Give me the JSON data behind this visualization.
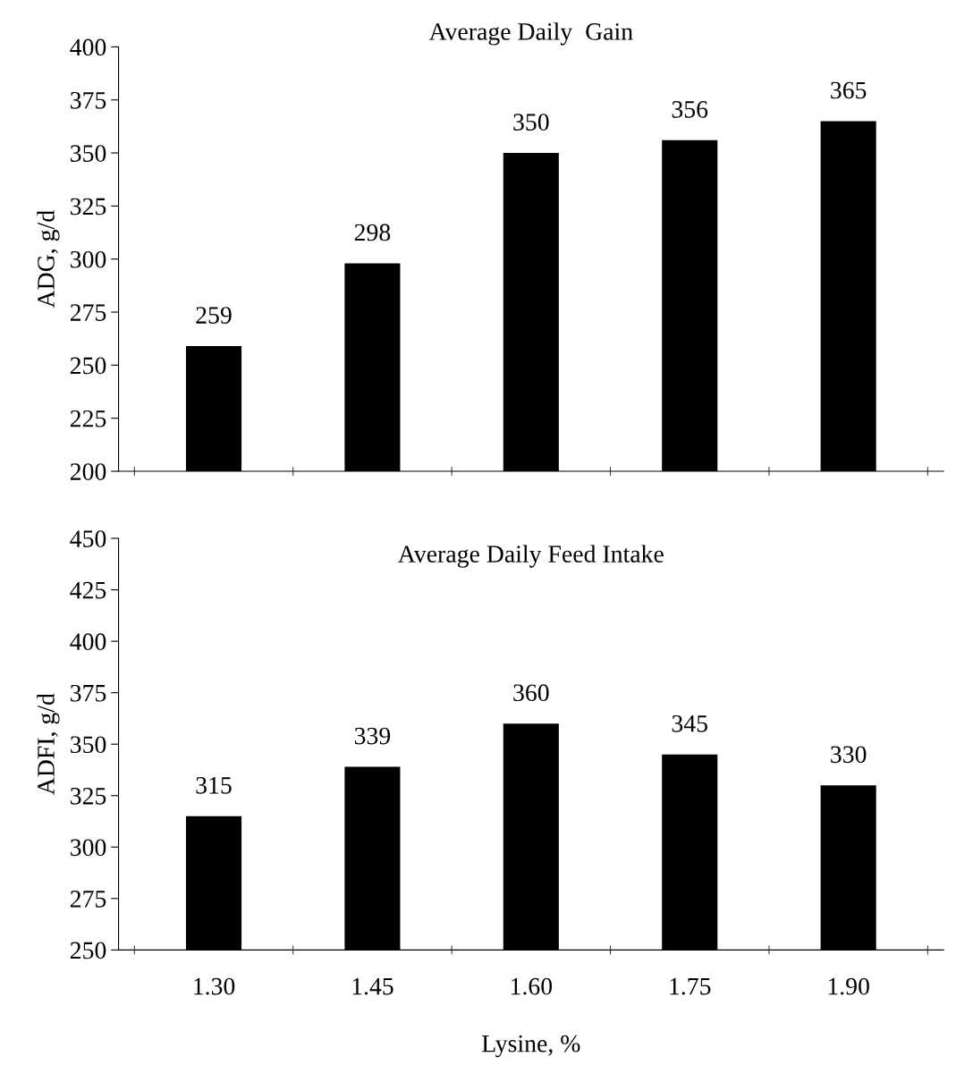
{
  "chart_data": [
    {
      "type": "bar",
      "title": "Average Daily  Gain",
      "ylabel": "ADG, g/d",
      "categories": [
        "1.30",
        "1.45",
        "1.60",
        "1.75",
        "1.90"
      ],
      "values": [
        259,
        298,
        350,
        356,
        365
      ],
      "color": "#000000",
      "ylim": [
        200,
        400
      ],
      "yticks": [
        200,
        225,
        250,
        275,
        300,
        325,
        350,
        375,
        400
      ],
      "data_labels": true,
      "tick_labels": "y"
    },
    {
      "type": "bar",
      "title": "Average Daily Feed Intake",
      "ylabel": "ADFI, g/d",
      "xlabel": "Lysine, %",
      "categories": [
        "1.30",
        "1.45",
        "1.60",
        "1.75",
        "1.90"
      ],
      "values": [
        315,
        339,
        360,
        345,
        330
      ],
      "color": "#000000",
      "ylim": [
        250,
        450
      ],
      "yticks": [
        250,
        275,
        300,
        325,
        350,
        375,
        400,
        425,
        450
      ],
      "data_labels": true
    }
  ]
}
